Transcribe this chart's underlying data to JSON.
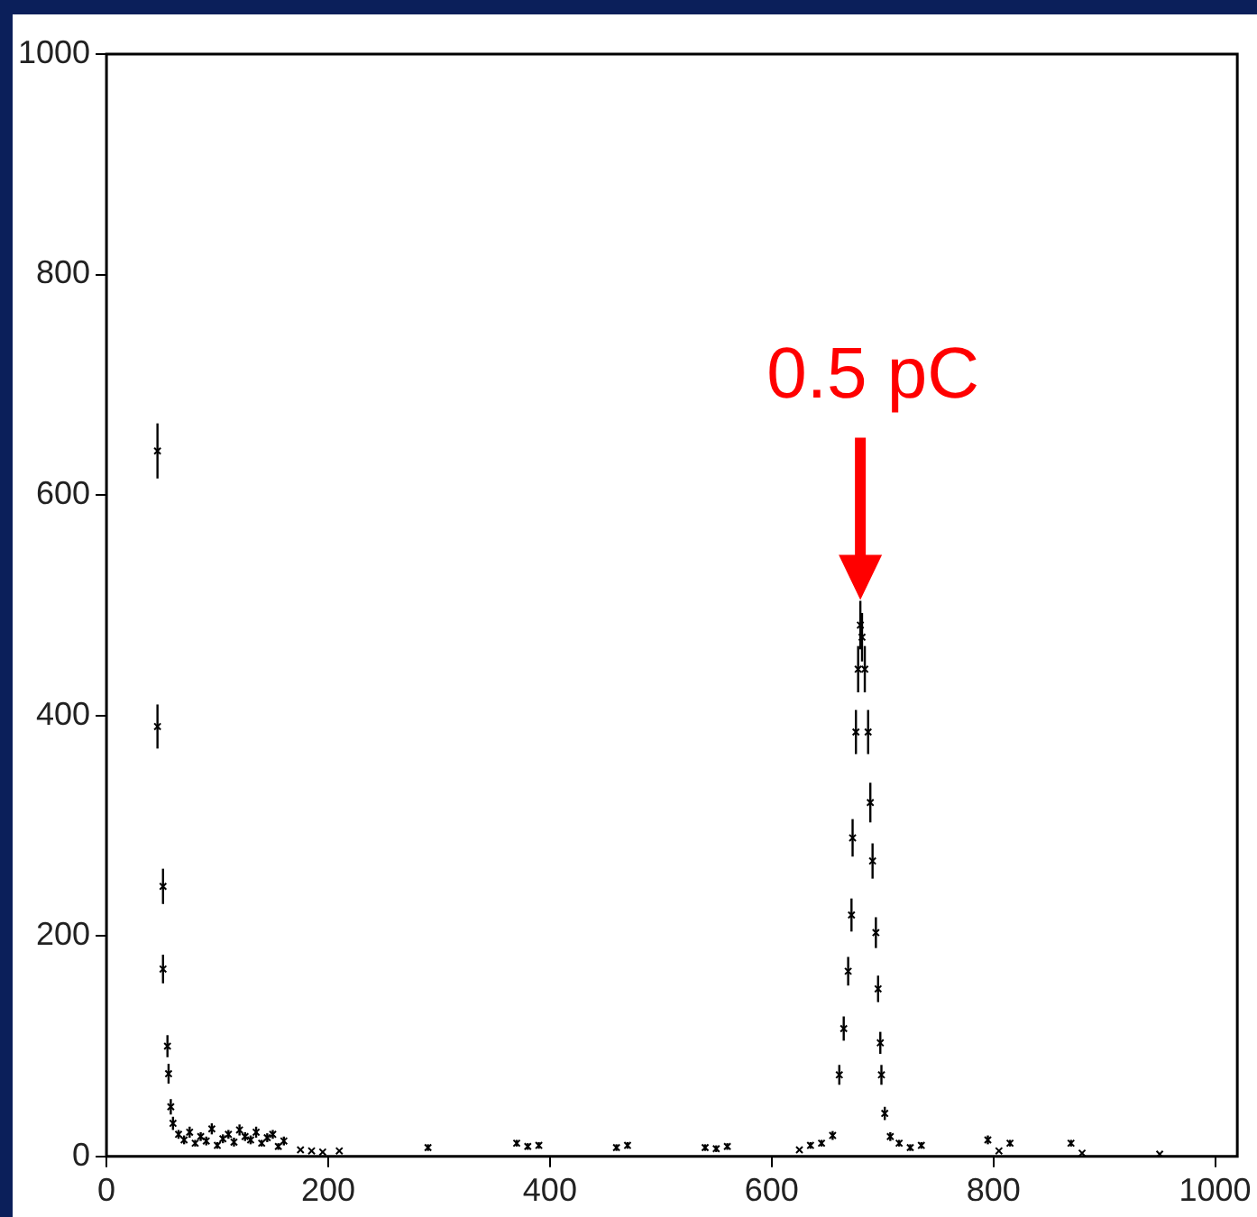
{
  "chart_data": {
    "type": "scatter",
    "xlim": [
      0,
      1020
    ],
    "ylim": [
      0,
      1000
    ],
    "xticks": [
      0,
      200,
      400,
      600,
      800,
      1000
    ],
    "yticks": [
      0,
      200,
      400,
      600,
      800,
      1000
    ],
    "grid": false,
    "legend": false,
    "marker": "cross",
    "series": [
      {
        "color": "#000000",
        "x": [
          46,
          46,
          51,
          51,
          55,
          56,
          58,
          60,
          65,
          70,
          75,
          80,
          85,
          90,
          95,
          100,
          105,
          110,
          115,
          120,
          125,
          130,
          135,
          140,
          145,
          150,
          155,
          160,
          175,
          185,
          195,
          210,
          290,
          370,
          380,
          390,
          460,
          470,
          540,
          550,
          560,
          625,
          635,
          645,
          655,
          661,
          665,
          669,
          672,
          673,
          676,
          678,
          680,
          681.5,
          684,
          687,
          689,
          691,
          694,
          696,
          698,
          699,
          702,
          707,
          715,
          725,
          735,
          795,
          805,
          815,
          870,
          880,
          950
        ],
        "values": [
          640,
          390,
          245,
          170,
          100,
          75,
          45,
          30,
          20,
          15,
          22,
          12,
          18,
          14,
          25,
          10,
          16,
          20,
          13,
          24,
          18,
          15,
          22,
          12,
          17,
          20,
          9,
          14,
          6,
          5,
          4,
          5,
          8,
          12,
          9,
          10,
          8,
          10,
          8,
          7,
          9,
          6,
          10,
          12,
          19,
          74,
          116,
          168,
          219,
          289,
          385,
          442,
          482,
          471,
          442,
          385,
          321,
          268,
          203,
          152,
          103,
          74,
          39,
          18,
          12,
          8,
          10,
          15,
          5,
          12,
          12,
          3,
          2
        ],
        "errors": [
          25,
          20,
          16,
          13,
          10,
          9,
          7,
          6,
          4,
          4,
          5,
          3,
          4,
          4,
          5,
          3,
          4,
          4,
          4,
          5,
          4,
          4,
          5,
          3,
          4,
          4,
          3,
          4,
          null,
          null,
          null,
          null,
          3,
          3,
          3,
          3,
          3,
          3,
          3,
          3,
          3,
          null,
          3,
          3,
          4,
          9,
          11,
          13,
          15,
          17,
          20,
          21,
          22,
          22,
          21,
          20,
          18,
          16,
          14,
          12,
          10,
          9,
          6,
          4,
          3,
          3,
          3,
          4,
          null,
          3,
          3,
          null,
          null
        ]
      }
    ],
    "annotations": [
      {
        "text": "0.5 pC",
        "x": 680,
        "y": 482
      }
    ]
  }
}
